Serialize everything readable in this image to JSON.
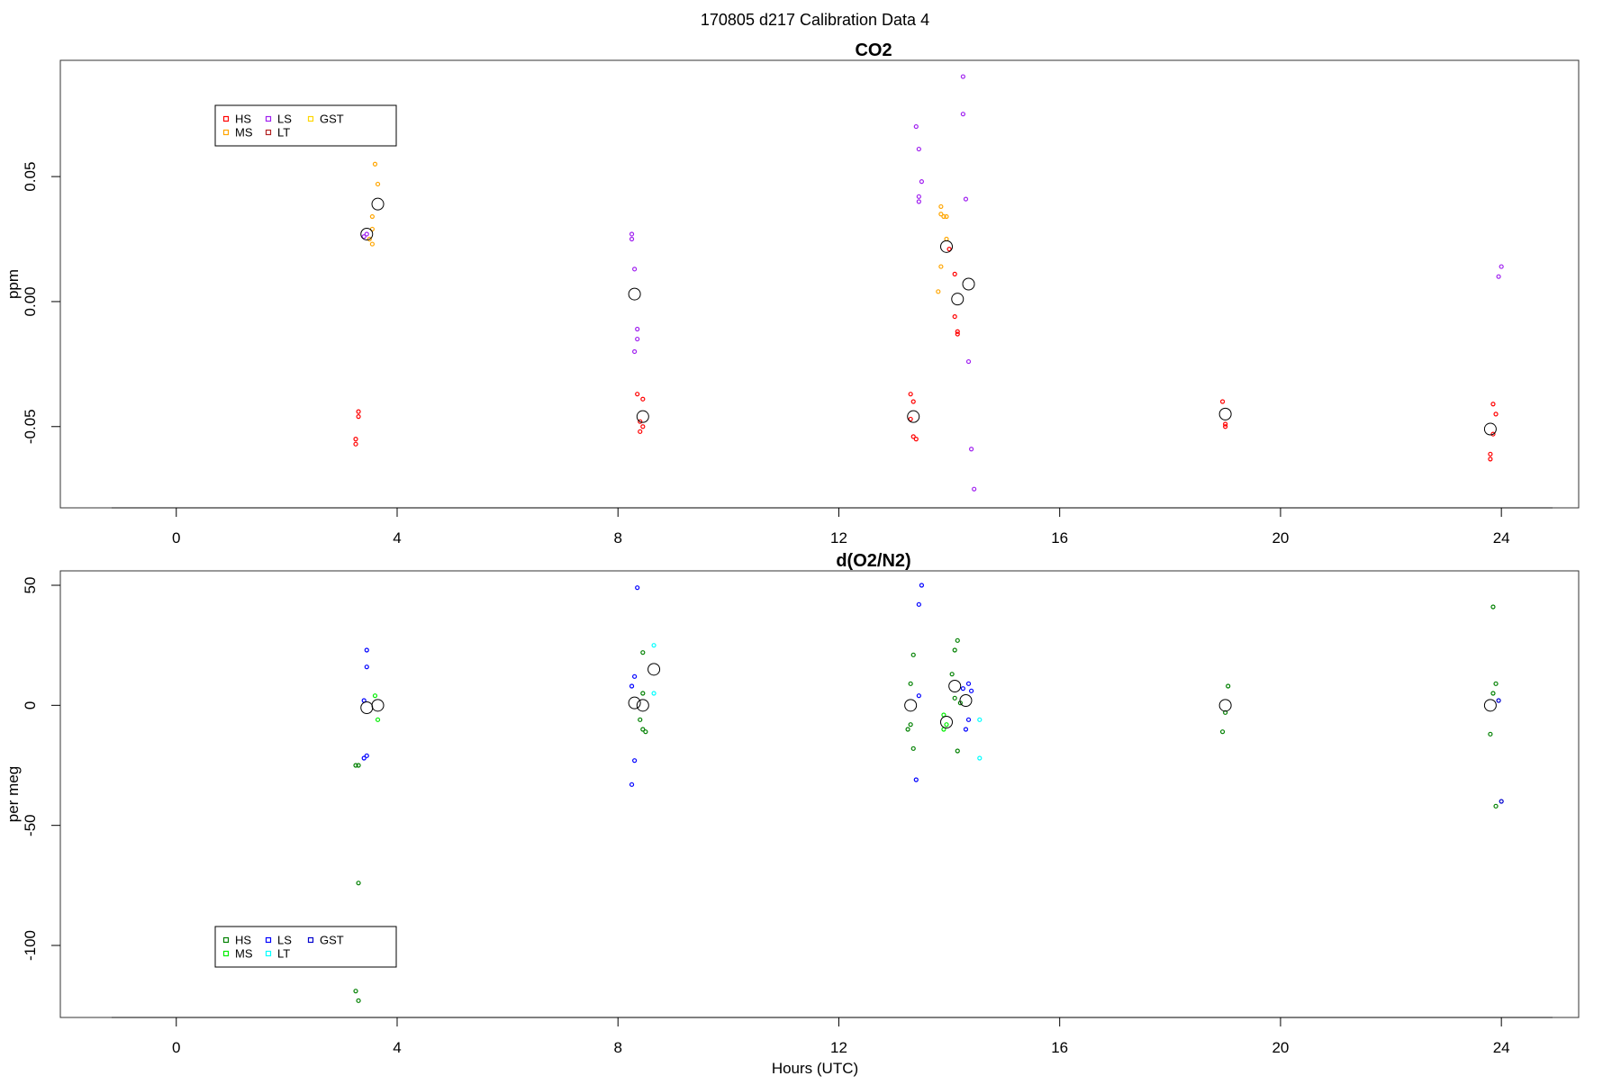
{
  "figure": {
    "title": "170805   d217   Calibration Data 4"
  },
  "chart_data": [
    {
      "type": "scatter",
      "title": "CO2",
      "xlabel": "",
      "ylabel": "ppm",
      "xlim": [
        -2.1,
        25.4
      ],
      "ylim": [
        -0.0825,
        0.0965
      ],
      "xticks": [
        0,
        4,
        8,
        12,
        16,
        20,
        24
      ],
      "xtick_labels": [
        "0",
        "4",
        "8",
        "12",
        "16",
        "20",
        "24"
      ],
      "yticks": [
        -0.05,
        0.0,
        0.05
      ],
      "ytick_labels": [
        "-0.05",
        "0.00",
        "0.05"
      ],
      "grid": false,
      "legend": {
        "placement": "top-left",
        "entries": [
          "HS",
          "MS",
          "LS",
          "LT",
          "GST"
        ],
        "colors": [
          "#ff0000",
          "#ffa500",
          "#a020f0",
          "#b22222",
          "#ffd700"
        ]
      },
      "series": [
        {
          "name": "HS",
          "color": "#ff0000",
          "x": [
            3.25,
            3.25,
            3.3,
            3.3,
            8.35,
            8.45,
            8.4,
            8.45,
            8.4,
            13.3,
            13.35,
            13.35,
            13.4,
            13.3,
            14.0,
            14.1,
            14.15,
            14.1,
            14.15,
            18.95,
            19.0,
            19.0,
            23.85,
            23.9,
            23.85,
            23.8,
            23.8
          ],
          "y": [
            -0.057,
            -0.055,
            -0.046,
            -0.044,
            -0.037,
            -0.039,
            -0.048,
            -0.05,
            -0.052,
            -0.037,
            -0.04,
            -0.054,
            -0.055,
            -0.047,
            0.021,
            0.011,
            -0.012,
            -0.006,
            -0.013,
            -0.04,
            -0.049,
            -0.05,
            -0.041,
            -0.045,
            -0.053,
            -0.061,
            -0.063
          ]
        },
        {
          "name": "MS",
          "color": "#ffa500",
          "x": [
            3.6,
            3.65,
            3.55,
            3.55,
            3.5,
            3.55,
            13.85,
            13.85,
            13.9,
            13.95,
            13.95,
            13.85,
            13.8
          ],
          "y": [
            0.055,
            0.047,
            0.034,
            0.029,
            0.025,
            0.023,
            0.038,
            0.035,
            0.034,
            0.034,
            0.025,
            0.014,
            0.004
          ]
        },
        {
          "name": "LS",
          "color": "#a020f0",
          "x": [
            3.45,
            3.4,
            8.25,
            8.25,
            8.3,
            8.35,
            8.35,
            8.3,
            13.4,
            13.45,
            13.5,
            13.45,
            13.45,
            14.25,
            14.25,
            14.3,
            14.35,
            14.4,
            14.45,
            24.0,
            23.95
          ],
          "y": [
            0.027,
            0.026,
            0.027,
            0.025,
            0.013,
            -0.011,
            -0.015,
            -0.02,
            0.07,
            0.061,
            0.048,
            0.042,
            0.04,
            0.09,
            0.075,
            0.041,
            -0.024,
            -0.059,
            -0.075,
            0.014,
            0.01
          ]
        },
        {
          "name": "LT",
          "color": "#b22222",
          "x": [],
          "y": []
        },
        {
          "name": "GST",
          "color": "#ffd700",
          "x": [],
          "y": []
        },
        {
          "name": "",
          "color": "#000000",
          "x": [
            3.45,
            3.65,
            8.3,
            8.45,
            13.35,
            13.95,
            14.15,
            14.35,
            19.0,
            23.8
          ],
          "y": [
            0.027,
            0.039,
            0.003,
            -0.046,
            -0.046,
            0.022,
            0.001,
            0.007,
            -0.045,
            -0.051
          ]
        }
      ]
    },
    {
      "type": "scatter",
      "title": "d(O2/N2)",
      "xlabel": "Hours (UTC)",
      "ylabel": "per meg",
      "xlim": [
        -2.1,
        25.4
      ],
      "ylim": [
        -130,
        56
      ],
      "xticks": [
        0,
        4,
        8,
        12,
        16,
        20,
        24
      ],
      "xtick_labels": [
        "0",
        "4",
        "8",
        "12",
        "16",
        "20",
        "24"
      ],
      "yticks": [
        -100,
        -50,
        0,
        50
      ],
      "ytick_labels": [
        "-100",
        "-50",
        "0",
        "50"
      ],
      "grid": false,
      "legend": {
        "placement": "bottom-left",
        "entries": [
          "HS",
          "MS",
          "LS",
          "LT",
          "GST"
        ],
        "colors": [
          "#008000",
          "#00ee00",
          "#0000ff",
          "#00ffff",
          "#0000cd"
        ]
      },
      "series": [
        {
          "name": "HS",
          "color": "#008000",
          "x": [
            3.25,
            3.3,
            3.3,
            3.3,
            3.25,
            8.45,
            8.45,
            8.4,
            8.45,
            8.5,
            13.35,
            13.3,
            13.3,
            13.25,
            13.35,
            14.15,
            14.1,
            14.05,
            14.1,
            14.2,
            14.15,
            19.05,
            19.0,
            18.95,
            23.85,
            23.9,
            23.85,
            23.8,
            23.9
          ],
          "y": [
            -25,
            -25,
            -74,
            -123,
            -119,
            22,
            5,
            -6,
            -10,
            -11,
            21,
            9,
            -8,
            -10,
            -18,
            27,
            23,
            13,
            3,
            1,
            -19,
            8,
            -3,
            -11,
            41,
            9,
            5,
            -12,
            -42
          ]
        },
        {
          "name": "MS",
          "color": "#00ee00",
          "x": [
            3.6,
            3.65,
            13.9,
            13.95,
            13.9
          ],
          "y": [
            4,
            -6,
            -4,
            -8,
            -10
          ]
        },
        {
          "name": "LS",
          "color": "#0000ff",
          "x": [
            3.45,
            3.45,
            3.4,
            3.45,
            3.4,
            8.35,
            8.3,
            8.25,
            8.3,
            8.25,
            13.5,
            13.45,
            13.45,
            13.4,
            14.25,
            14.35,
            14.4,
            14.35,
            14.3
          ],
          "y": [
            23,
            16,
            2,
            -21,
            -22,
            49,
            12,
            8,
            -23,
            -33,
            50,
            42,
            4,
            -31,
            7,
            9,
            6,
            -6,
            -10
          ]
        },
        {
          "name": "LT",
          "color": "#00ffff",
          "x": [
            8.65,
            8.65,
            14.55,
            14.55
          ],
          "y": [
            25,
            5,
            -6,
            -22
          ]
        },
        {
          "name": "GST",
          "color": "#0000cd",
          "x": [
            23.95,
            24.0
          ],
          "y": [
            2,
            -40
          ]
        },
        {
          "name": "",
          "color": "#000000",
          "x": [
            3.45,
            3.65,
            8.3,
            8.45,
            8.65,
            13.3,
            13.95,
            14.1,
            14.3,
            19.0,
            23.8
          ],
          "y": [
            -1,
            0,
            1,
            0,
            15,
            0,
            -7,
            8,
            2,
            0,
            0
          ]
        }
      ]
    }
  ]
}
